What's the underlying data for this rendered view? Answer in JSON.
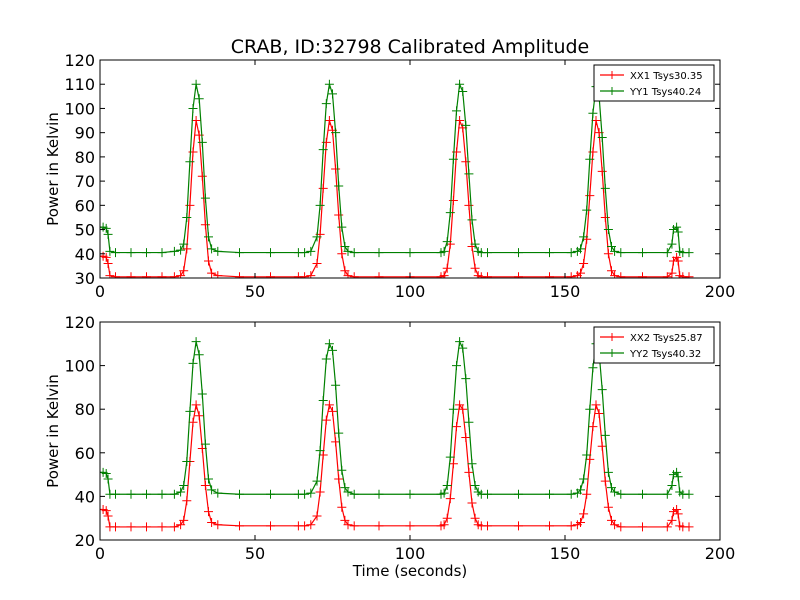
{
  "figure_title": "CRAB, ID:32798 Calibrated Amplitude",
  "colors": {
    "xx": "#ff0000",
    "yy": "#008000"
  },
  "chart_data": [
    {
      "type": "line",
      "title": "CRAB, ID:32798 Calibrated Amplitude",
      "xlabel": "",
      "ylabel": "Power in Kelvin",
      "xlim": [
        0,
        200
      ],
      "ylim": [
        30,
        120
      ],
      "xticks": [
        0,
        50,
        100,
        150,
        200
      ],
      "yticks": [
        30,
        40,
        50,
        60,
        70,
        80,
        90,
        100,
        110,
        120
      ],
      "legend": "top-right",
      "marker": "+",
      "series": [
        {
          "name": "XX1 Tsys30.35",
          "color": "#ff0000",
          "x": [
            0,
            1,
            2,
            2.6,
            3.2,
            5,
            10,
            15,
            20,
            24,
            26,
            27,
            28,
            29,
            30,
            31,
            32,
            33,
            34,
            35,
            36,
            38,
            45,
            55,
            64,
            66,
            68,
            70,
            71,
            72,
            73,
            74,
            75,
            76,
            77,
            78,
            79,
            80,
            82,
            90,
            100,
            110,
            111,
            112,
            113,
            114,
            115,
            116,
            117,
            118,
            119,
            120,
            121,
            122,
            123,
            125,
            135,
            145,
            152,
            154,
            155,
            156,
            157,
            158,
            159,
            160,
            161,
            162,
            163,
            164,
            165,
            166,
            168,
            175,
            183,
            184.5,
            185,
            186,
            186.5,
            187,
            188,
            190
          ],
          "y": [
            39,
            39,
            38.5,
            36,
            31,
            30.5,
            30.5,
            30.5,
            30.5,
            30.5,
            31,
            33,
            42,
            60,
            82,
            95,
            89,
            72,
            52,
            37,
            32,
            31,
            30.5,
            30.5,
            30.5,
            30.5,
            31,
            36,
            48,
            67,
            86,
            95,
            91,
            75,
            56,
            40,
            33,
            31,
            30.5,
            30.5,
            30.5,
            30.5,
            31,
            34,
            44,
            62,
            82,
            95,
            92,
            78,
            60,
            43,
            34,
            31,
            30.5,
            30.5,
            30.5,
            30.5,
            30.5,
            31,
            32,
            36,
            46,
            64,
            82,
            95,
            90,
            74,
            55,
            40,
            33,
            31,
            30.5,
            30.5,
            30.5,
            32,
            37,
            38.5,
            37,
            31,
            30.5,
            30.5
          ]
        },
        {
          "name": "YY1 Tsys40.24",
          "color": "#008000",
          "x": [
            0,
            1,
            2,
            2.6,
            3.2,
            5,
            10,
            15,
            20,
            24,
            26,
            27,
            28,
            29,
            30,
            31,
            32,
            33,
            34,
            35,
            36,
            38,
            45,
            55,
            64,
            66,
            68,
            70,
            71,
            72,
            73,
            74,
            75,
            76,
            77,
            78,
            79,
            80,
            82,
            90,
            100,
            110,
            111,
            112,
            113,
            114,
            115,
            116,
            117,
            118,
            119,
            120,
            121,
            122,
            123,
            125,
            135,
            145,
            152,
            154,
            155,
            156,
            157,
            158,
            159,
            160,
            161,
            162,
            163,
            164,
            165,
            166,
            168,
            175,
            183,
            184.5,
            185,
            186,
            186.5,
            187,
            188,
            190
          ],
          "y": [
            51,
            51,
            50.5,
            48,
            41,
            40.5,
            40.5,
            40.5,
            40.5,
            41,
            41.5,
            44,
            55,
            78,
            100,
            110,
            104,
            86,
            63,
            47,
            42,
            41,
            40.5,
            40.5,
            40.5,
            40.5,
            41,
            47,
            60,
            83,
            102,
            110,
            106,
            90,
            68,
            51,
            43,
            41,
            40.5,
            40.5,
            40.5,
            40.5,
            41,
            45,
            57,
            79,
            99,
            110,
            107,
            93,
            73,
            54,
            44,
            41,
            40.5,
            40.5,
            40.5,
            40.5,
            40.5,
            41,
            42,
            47,
            58,
            79,
            98,
            109,
            105,
            88,
            67,
            50,
            43,
            41,
            40.5,
            40.5,
            40.5,
            44,
            50,
            51,
            49,
            41,
            40.5,
            40.5
          ]
        }
      ]
    },
    {
      "type": "line",
      "title": "",
      "xlabel": "Time (seconds)",
      "ylabel": "Power in Kelvin",
      "xlim": [
        0,
        200
      ],
      "ylim": [
        20,
        120
      ],
      "xticks": [
        0,
        50,
        100,
        150,
        200
      ],
      "yticks": [
        20,
        40,
        60,
        80,
        100,
        120
      ],
      "legend": "top-right",
      "marker": "+",
      "series": [
        {
          "name": "XX2 Tsys25.87",
          "color": "#ff0000",
          "x": [
            0,
            1,
            2,
            2.6,
            3.2,
            5,
            10,
            15,
            20,
            24,
            26,
            27,
            28,
            29,
            30,
            31,
            32,
            33,
            34,
            35,
            36,
            38,
            45,
            55,
            64,
            66,
            68,
            70,
            71,
            72,
            73,
            74,
            75,
            76,
            77,
            78,
            79,
            80,
            82,
            90,
            100,
            110,
            111,
            112,
            113,
            114,
            115,
            116,
            117,
            118,
            119,
            120,
            121,
            122,
            123,
            125,
            135,
            145,
            152,
            154,
            155,
            156,
            157,
            158,
            159,
            160,
            161,
            162,
            163,
            164,
            165,
            166,
            168,
            175,
            183,
            184.5,
            185,
            186,
            186.5,
            187,
            188,
            190
          ],
          "y": [
            34,
            34,
            33.5,
            31,
            26,
            26,
            26,
            26,
            26,
            26,
            27,
            29,
            38,
            56,
            74,
            82,
            77,
            62,
            45,
            33,
            28,
            27,
            26.5,
            26.5,
            26.5,
            26.5,
            27,
            31,
            42,
            59,
            75,
            82,
            79,
            65,
            48,
            35,
            29,
            27,
            26.5,
            26.5,
            26.5,
            26.5,
            27,
            30,
            39,
            55,
            72,
            82,
            80,
            67,
            51,
            37,
            30,
            27,
            26.5,
            26.5,
            26.5,
            26.5,
            26.5,
            27,
            28,
            32,
            41,
            57,
            72,
            82,
            78,
            63,
            47,
            35,
            29,
            27,
            26,
            26,
            26,
            29,
            33,
            34,
            32,
            26.5,
            26,
            26
          ]
        },
        {
          "name": "YY2 Tsys40.32",
          "color": "#008000",
          "x": [
            0,
            1,
            2,
            2.6,
            3.2,
            5,
            10,
            15,
            20,
            24,
            26,
            27,
            28,
            29,
            30,
            31,
            32,
            33,
            34,
            35,
            36,
            38,
            45,
            55,
            64,
            66,
            68,
            70,
            71,
            72,
            73,
            74,
            75,
            76,
            77,
            78,
            79,
            80,
            82,
            90,
            100,
            110,
            111,
            112,
            113,
            114,
            115,
            116,
            117,
            118,
            119,
            120,
            121,
            122,
            123,
            125,
            135,
            145,
            152,
            154,
            155,
            156,
            157,
            158,
            159,
            160,
            161,
            162,
            163,
            164,
            165,
            166,
            168,
            175,
            183,
            184.5,
            185,
            186,
            186.5,
            187,
            188,
            190
          ],
          "y": [
            51,
            51,
            50.5,
            48,
            41,
            41,
            41,
            41,
            41,
            41,
            42,
            45,
            56,
            79,
            101,
            111,
            105,
            87,
            64,
            48,
            43,
            41.5,
            41,
            41,
            41,
            41,
            41.5,
            47,
            61,
            84,
            103,
            110,
            107,
            91,
            69,
            52,
            44,
            42,
            41,
            41,
            41,
            41,
            41.5,
            45,
            58,
            80,
            100,
            111,
            108,
            94,
            74,
            55,
            45,
            42,
            41,
            41,
            41,
            41,
            41,
            41.5,
            43,
            48,
            59,
            80,
            99,
            110,
            106,
            89,
            68,
            51,
            44,
            42,
            41,
            41,
            41,
            45,
            50,
            51,
            49,
            42,
            41,
            41
          ]
        }
      ]
    }
  ]
}
